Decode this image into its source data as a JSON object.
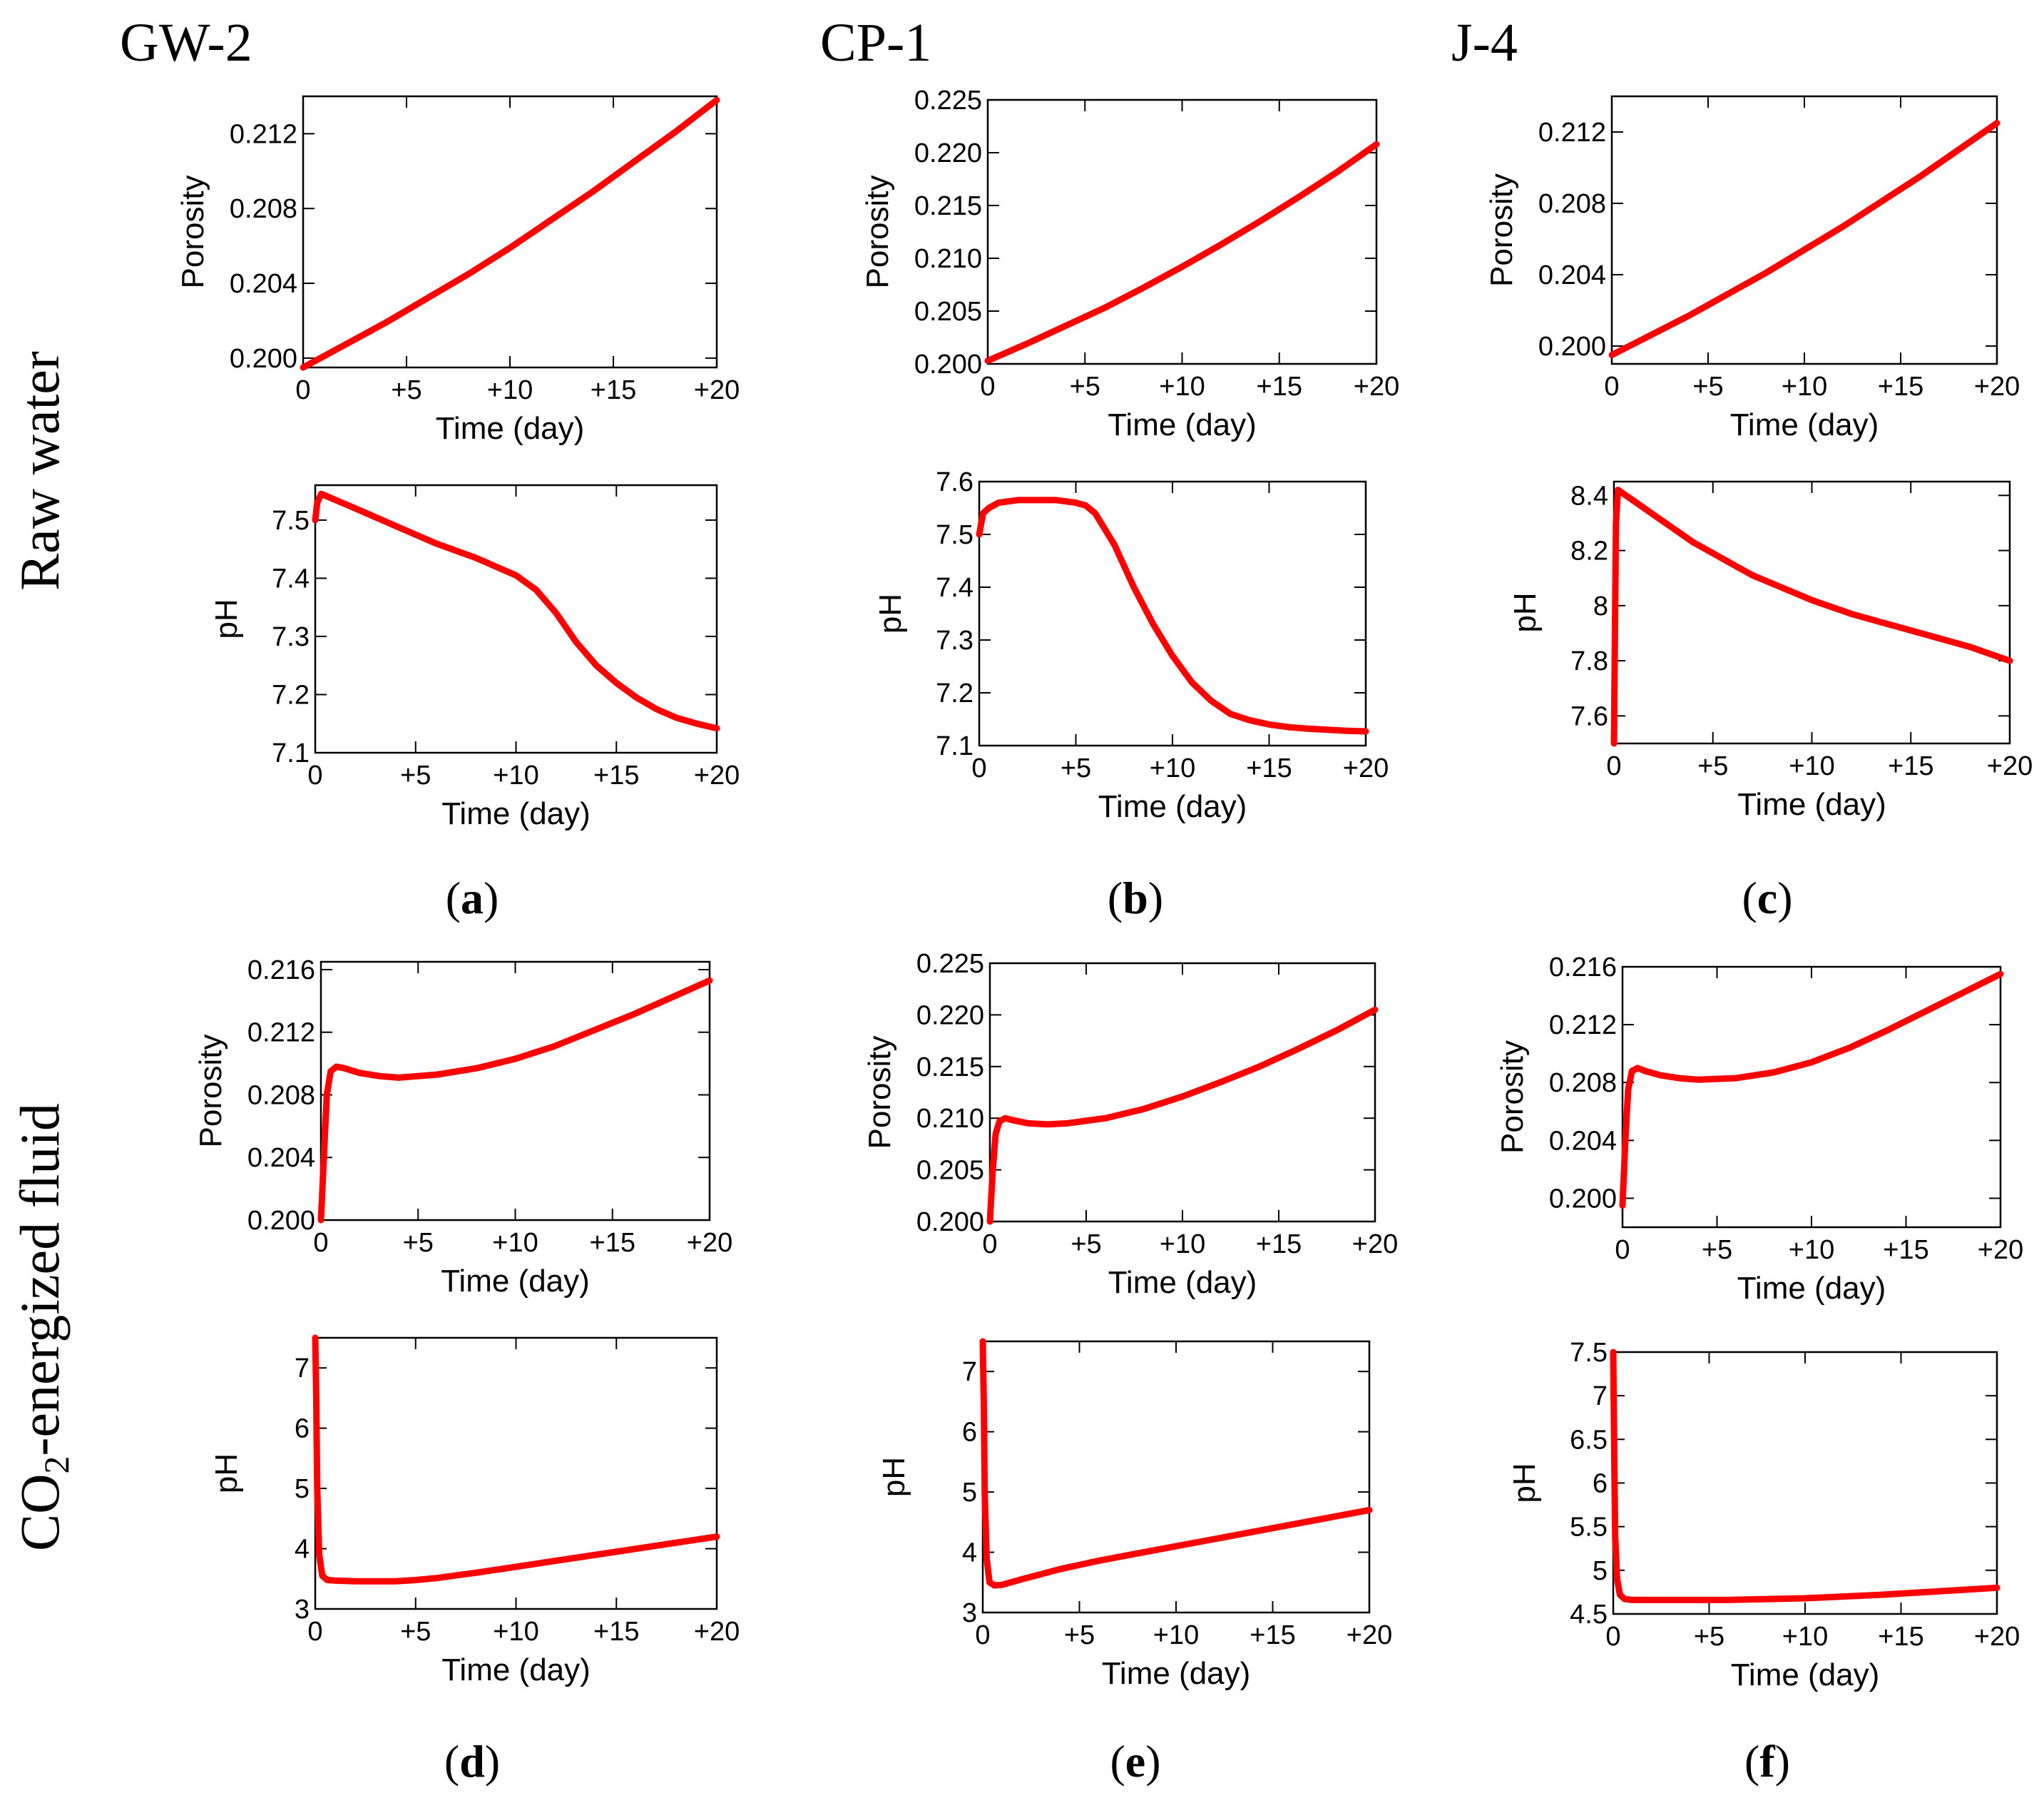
{
  "column_titles": [
    "GW-2",
    "CP-1",
    "J-4"
  ],
  "row_labels": {
    "top": "Raw water",
    "bottom_prefix": "CO",
    "bottom_sub": "2",
    "bottom_suffix": "-energized fluid"
  },
  "panel_labels": [
    {
      "open": "(",
      "letter": "a",
      "close": ")"
    },
    {
      "open": "(",
      "letter": "b",
      "close": ")"
    },
    {
      "open": "(",
      "letter": "c",
      "close": ")"
    },
    {
      "open": "(",
      "letter": "d",
      "close": ")"
    },
    {
      "open": "(",
      "letter": "e",
      "close": ")"
    },
    {
      "open": "(",
      "letter": "f",
      "close": ")"
    }
  ],
  "chart_data": [
    {
      "id": "a-porosity",
      "type": "line",
      "xlabel": "Time (day)",
      "ylabel": "Porosity",
      "xlim": [
        0,
        20
      ],
      "ylim": [
        0.1995,
        0.214
      ],
      "xticks": [
        0,
        5,
        10,
        15,
        20
      ],
      "xtick_labels": [
        "0",
        "+5",
        "+10",
        "+15",
        "+20"
      ],
      "yticks": [
        0.2,
        0.204,
        0.208,
        0.212
      ],
      "ytick_labels": [
        "0.200",
        "0.204",
        "0.208",
        "0.212"
      ],
      "series": [
        {
          "name": "GW-2 raw water porosity",
          "color": "#ff0000",
          "x": [
            0,
            2,
            4,
            6,
            8,
            10,
            12,
            14,
            16,
            18,
            20
          ],
          "y": [
            0.1995,
            0.2007,
            0.2019,
            0.2032,
            0.2045,
            0.2059,
            0.2074,
            0.2089,
            0.2105,
            0.2121,
            0.2138
          ]
        }
      ]
    },
    {
      "id": "a-ph",
      "type": "line",
      "xlabel": "Time (day)",
      "ylabel": "pH",
      "xlim": [
        0,
        20
      ],
      "ylim": [
        7.1,
        7.56
      ],
      "xticks": [
        0,
        5,
        10,
        15,
        20
      ],
      "xtick_labels": [
        "0",
        "+5",
        "+10",
        "+15",
        "+20"
      ],
      "yticks": [
        7.1,
        7.2,
        7.3,
        7.4,
        7.5
      ],
      "ytick_labels": [
        "7.1",
        "7.2",
        "7.3",
        "7.4",
        "7.5"
      ],
      "series": [
        {
          "name": "GW-2 raw water pH",
          "color": "#ff0000",
          "x": [
            0,
            0.1,
            0.3,
            2,
            4,
            6,
            8,
            10,
            11,
            12,
            13,
            14,
            15,
            16,
            17,
            18,
            19,
            20
          ],
          "y": [
            7.5,
            7.53,
            7.545,
            7.52,
            7.49,
            7.46,
            7.435,
            7.405,
            7.38,
            7.34,
            7.29,
            7.25,
            7.22,
            7.195,
            7.175,
            7.16,
            7.15,
            7.142
          ]
        }
      ]
    },
    {
      "id": "b-porosity",
      "type": "line",
      "xlabel": "Time (day)",
      "ylabel": "Porosity",
      "xlim": [
        0,
        20
      ],
      "ylim": [
        0.2,
        0.225
      ],
      "xticks": [
        0,
        5,
        10,
        15,
        20
      ],
      "xtick_labels": [
        "0",
        "+5",
        "+10",
        "+15",
        "+20"
      ],
      "yticks": [
        0.2,
        0.205,
        0.21,
        0.215,
        0.22,
        0.225
      ],
      "ytick_labels": [
        "0.200",
        "0.205",
        "0.210",
        "0.215",
        "0.220",
        "0.225"
      ],
      "series": [
        {
          "name": "CP-1 raw water porosity",
          "color": "#ff0000",
          "x": [
            0,
            2,
            4,
            6,
            8,
            10,
            12,
            14,
            16,
            18,
            20
          ],
          "y": [
            0.2003,
            0.2019,
            0.2036,
            0.2053,
            0.2072,
            0.2092,
            0.2113,
            0.2135,
            0.2158,
            0.2182,
            0.2208
          ]
        }
      ]
    },
    {
      "id": "b-ph",
      "type": "line",
      "xlabel": "Time (day)",
      "ylabel": "pH",
      "xlim": [
        0,
        20
      ],
      "ylim": [
        7.1,
        7.6
      ],
      "xticks": [
        0,
        5,
        10,
        15,
        20
      ],
      "xtick_labels": [
        "0",
        "+5",
        "+10",
        "+15",
        "+20"
      ],
      "yticks": [
        7.1,
        7.2,
        7.3,
        7.4,
        7.5,
        7.6
      ],
      "ytick_labels": [
        "7.1",
        "7.2",
        "7.3",
        "7.4",
        "7.5",
        "7.6"
      ],
      "series": [
        {
          "name": "CP-1 raw water pH",
          "color": "#ff0000",
          "x": [
            0,
            0.2,
            0.5,
            1,
            2,
            3,
            4,
            5,
            5.5,
            6,
            7,
            8,
            9,
            10,
            11,
            12,
            13,
            14,
            15,
            16,
            17,
            18,
            19,
            20
          ],
          "y": [
            7.5,
            7.54,
            7.55,
            7.56,
            7.565,
            7.565,
            7.565,
            7.56,
            7.555,
            7.54,
            7.48,
            7.4,
            7.33,
            7.27,
            7.22,
            7.185,
            7.16,
            7.148,
            7.14,
            7.135,
            7.132,
            7.13,
            7.128,
            7.127
          ]
        }
      ]
    },
    {
      "id": "c-porosity",
      "type": "line",
      "xlabel": "Time (day)",
      "ylabel": "Porosity",
      "xlim": [
        0,
        20
      ],
      "ylim": [
        0.199,
        0.214
      ],
      "xticks": [
        0,
        5,
        10,
        15,
        20
      ],
      "xtick_labels": [
        "0",
        "+5",
        "+10",
        "+15",
        "+20"
      ],
      "yticks": [
        0.2,
        0.204,
        0.208,
        0.212
      ],
      "ytick_labels": [
        "0.200",
        "0.204",
        "0.208",
        "0.212"
      ],
      "series": [
        {
          "name": "J-4 raw water porosity",
          "color": "#ff0000",
          "x": [
            0,
            2,
            4,
            6,
            8,
            10,
            12,
            14,
            16,
            18,
            20
          ],
          "y": [
            0.1995,
            0.2006,
            0.2017,
            0.2029,
            0.2041,
            0.2054,
            0.2067,
            0.2081,
            0.2095,
            0.211,
            0.2125
          ]
        }
      ]
    },
    {
      "id": "c-ph",
      "type": "line",
      "xlabel": "Time (day)",
      "ylabel": "pH",
      "xlim": [
        0,
        20
      ],
      "ylim": [
        7.5,
        8.45
      ],
      "xticks": [
        0,
        5,
        10,
        15,
        20
      ],
      "xtick_labels": [
        "0",
        "+5",
        "+10",
        "+15",
        "+20"
      ],
      "yticks": [
        7.6,
        7.8,
        8,
        8.2,
        8.4
      ],
      "ytick_labels": [
        "7.6",
        "7.8",
        "8",
        "8.2",
        "8.4"
      ],
      "series": [
        {
          "name": "J-4 raw water pH",
          "color": "#ff0000",
          "x": [
            0,
            0.1,
            0.2,
            1,
            2,
            3,
            4,
            5,
            6,
            7,
            8,
            9,
            10,
            12,
            14,
            16,
            18,
            20
          ],
          "y": [
            7.5,
            8.3,
            8.42,
            8.38,
            8.33,
            8.28,
            8.23,
            8.19,
            8.15,
            8.11,
            8.08,
            8.05,
            8.02,
            7.97,
            7.93,
            7.89,
            7.85,
            7.8
          ]
        }
      ]
    },
    {
      "id": "d-porosity",
      "type": "line",
      "xlabel": "Time (day)",
      "ylabel": "Porosity",
      "xlim": [
        0,
        20
      ],
      "ylim": [
        0.2,
        0.2165
      ],
      "xticks": [
        0,
        5,
        10,
        15,
        20
      ],
      "xtick_labels": [
        "0",
        "+5",
        "+10",
        "+15",
        "+20"
      ],
      "yticks": [
        0.2,
        0.204,
        0.208,
        0.212,
        0.216
      ],
      "ytick_labels": [
        "0.200",
        "0.204",
        "0.208",
        "0.212",
        "0.216"
      ],
      "series": [
        {
          "name": "GW-2 CO2-energized porosity",
          "color": "#ff0000",
          "x": [
            0,
            0.15,
            0.3,
            0.5,
            0.8,
            1.2,
            2,
            3,
            4,
            6,
            8,
            10,
            12,
            14,
            16,
            18,
            20
          ],
          "y": [
            0.2,
            0.204,
            0.208,
            0.2095,
            0.2098,
            0.2097,
            0.2094,
            0.2092,
            0.2091,
            0.2093,
            0.2097,
            0.2103,
            0.2111,
            0.2121,
            0.2131,
            0.2142,
            0.2153
          ]
        }
      ]
    },
    {
      "id": "d-ph",
      "type": "line",
      "xlabel": "Time (day)",
      "ylabel": "pH",
      "xlim": [
        0,
        20
      ],
      "ylim": [
        3,
        7.5
      ],
      "xticks": [
        0,
        5,
        10,
        15,
        20
      ],
      "xtick_labels": [
        "0",
        "+5",
        "+10",
        "+15",
        "+20"
      ],
      "yticks": [
        3,
        4,
        5,
        6,
        7
      ],
      "ytick_labels": [
        "3",
        "4",
        "5",
        "6",
        "7"
      ],
      "series": [
        {
          "name": "GW-2 CO2-energized pH",
          "color": "#ff0000",
          "x": [
            0,
            0.05,
            0.1,
            0.2,
            0.35,
            0.6,
            1,
            2,
            3,
            4,
            5,
            6,
            8,
            10,
            12,
            14,
            16,
            18,
            20
          ],
          "y": [
            7.5,
            6.5,
            5.0,
            3.9,
            3.55,
            3.48,
            3.47,
            3.46,
            3.46,
            3.46,
            3.48,
            3.51,
            3.6,
            3.7,
            3.8,
            3.9,
            4.0,
            4.1,
            4.2
          ]
        }
      ]
    },
    {
      "id": "e-porosity",
      "type": "line",
      "xlabel": "Time (day)",
      "ylabel": "Porosity",
      "xlim": [
        0,
        20
      ],
      "ylim": [
        0.2,
        0.225
      ],
      "xticks": [
        0,
        5,
        10,
        15,
        20
      ],
      "xtick_labels": [
        "0",
        "+5",
        "+10",
        "+15",
        "+20"
      ],
      "yticks": [
        0.2,
        0.205,
        0.21,
        0.215,
        0.22,
        0.225
      ],
      "ytick_labels": [
        "0.200",
        "0.205",
        "0.210",
        "0.215",
        "0.220",
        "0.225"
      ],
      "series": [
        {
          "name": "CP-1 CO2-energized porosity",
          "color": "#ff0000",
          "x": [
            0,
            0.15,
            0.3,
            0.5,
            0.8,
            1.2,
            2,
            3,
            4,
            6,
            8,
            10,
            12,
            14,
            16,
            18,
            20
          ],
          "y": [
            0.2,
            0.205,
            0.2085,
            0.2097,
            0.21,
            0.2098,
            0.2095,
            0.2094,
            0.2095,
            0.21,
            0.2109,
            0.2121,
            0.2135,
            0.215,
            0.2167,
            0.2185,
            0.2205
          ]
        }
      ]
    },
    {
      "id": "e-ph",
      "type": "line",
      "xlabel": "Time (day)",
      "ylabel": "pH",
      "xlim": [
        0,
        20
      ],
      "ylim": [
        3,
        7.5
      ],
      "xticks": [
        0,
        5,
        10,
        15,
        20
      ],
      "xtick_labels": [
        "0",
        "+5",
        "+10",
        "+15",
        "+20"
      ],
      "yticks": [
        3,
        4,
        5,
        6,
        7
      ],
      "ytick_labels": [
        "3",
        "4",
        "5",
        "6",
        "7"
      ],
      "series": [
        {
          "name": "CP-1 CO2-energized pH",
          "color": "#ff0000",
          "x": [
            0,
            0.05,
            0.1,
            0.2,
            0.35,
            0.6,
            1,
            2,
            4,
            6,
            8,
            10,
            12,
            14,
            16,
            18,
            20
          ],
          "y": [
            7.5,
            6.5,
            5.0,
            3.9,
            3.5,
            3.45,
            3.46,
            3.55,
            3.72,
            3.86,
            3.98,
            4.1,
            4.22,
            4.34,
            4.46,
            4.58,
            4.7
          ]
        }
      ]
    },
    {
      "id": "f-porosity",
      "type": "line",
      "xlabel": "Time (day)",
      "ylabel": "Porosity",
      "xlim": [
        0,
        20
      ],
      "ylim": [
        0.198,
        0.216
      ],
      "xticks": [
        0,
        5,
        10,
        15,
        20
      ],
      "xtick_labels": [
        "0",
        "+5",
        "+10",
        "+15",
        "+20"
      ],
      "yticks": [
        0.2,
        0.204,
        0.208,
        0.212,
        0.216
      ],
      "ytick_labels": [
        "0.200",
        "0.204",
        "0.208",
        "0.212",
        "0.216"
      ],
      "series": [
        {
          "name": "J-4 CO2-energized porosity",
          "color": "#ff0000",
          "x": [
            0,
            0.15,
            0.3,
            0.5,
            0.8,
            1.2,
            2,
            3,
            4,
            6,
            8,
            10,
            12,
            14,
            16,
            18,
            20
          ],
          "y": [
            0.1995,
            0.204,
            0.2075,
            0.2088,
            0.209,
            0.2088,
            0.2085,
            0.2083,
            0.2082,
            0.2083,
            0.2087,
            0.2094,
            0.2104,
            0.2116,
            0.2129,
            0.2142,
            0.2155
          ]
        }
      ]
    },
    {
      "id": "f-ph",
      "type": "line",
      "xlabel": "Time (day)",
      "ylabel": "pH",
      "xlim": [
        0,
        20
      ],
      "ylim": [
        4.5,
        7.5
      ],
      "xticks": [
        0,
        5,
        10,
        15,
        20
      ],
      "xtick_labels": [
        "0",
        "+5",
        "+10",
        "+15",
        "+20"
      ],
      "yticks": [
        4.5,
        5,
        5.5,
        6,
        6.5,
        7,
        7.5
      ],
      "ytick_labels": [
        "4.5",
        "5",
        "5.5",
        "6",
        "6.5",
        "7",
        "7.5"
      ],
      "series": [
        {
          "name": "J-4 CO2-energized pH",
          "color": "#ff0000",
          "x": [
            0,
            0.05,
            0.1,
            0.2,
            0.35,
            0.6,
            1,
            3,
            6,
            10,
            14,
            17,
            20
          ],
          "y": [
            7.5,
            6.4,
            5.4,
            4.9,
            4.72,
            4.67,
            4.66,
            4.66,
            4.66,
            4.68,
            4.72,
            4.76,
            4.8
          ]
        }
      ]
    }
  ]
}
